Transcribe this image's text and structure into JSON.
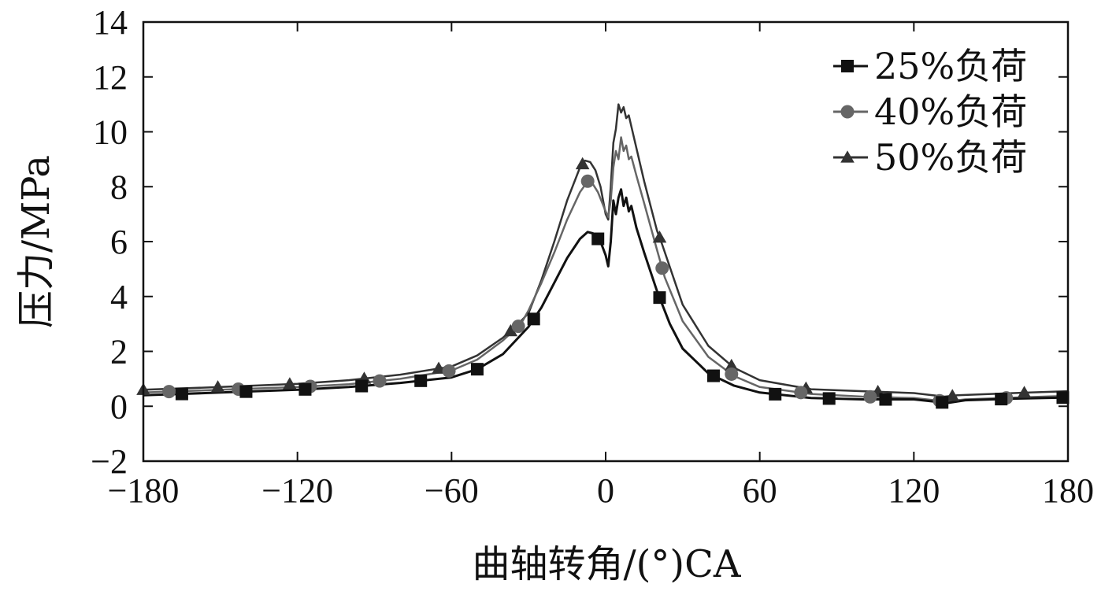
{
  "chart_data": {
    "type": "line",
    "title": "",
    "xlabel": "曲轴转角/(°)CA",
    "ylabel": "压力/MPa",
    "xlim": [
      -180,
      180
    ],
    "ylim": [
      -2,
      14
    ],
    "xticks": [
      -180,
      -120,
      -60,
      0,
      60,
      120,
      180
    ],
    "xtick_labels": [
      "−180",
      "−120",
      "−60",
      "0",
      "60",
      "120",
      "180"
    ],
    "yticks": [
      -2,
      0,
      2,
      4,
      6,
      8,
      10,
      12,
      14
    ],
    "ytick_labels": [
      "−2",
      "0",
      "2",
      "4",
      "6",
      "8",
      "10",
      "12",
      "14"
    ],
    "grid": false,
    "legend_position": "top-right",
    "series": [
      {
        "name": "25%负荷",
        "marker": "square",
        "color": "#111111",
        "x": [
          -180,
          -150,
          -120,
          -100,
          -80,
          -60,
          -50,
          -40,
          -30,
          -25,
          -20,
          -15,
          -10,
          -7,
          -5,
          -2,
          0,
          1,
          2,
          3,
          4,
          5,
          6,
          7,
          8,
          9,
          10,
          12,
          15,
          20,
          25,
          30,
          40,
          50,
          60,
          80,
          100,
          120,
          130,
          133,
          140,
          160,
          180
        ],
        "y": [
          0.4,
          0.5,
          0.6,
          0.7,
          0.85,
          1.05,
          1.35,
          1.9,
          2.9,
          3.6,
          4.5,
          5.4,
          6.1,
          6.35,
          6.3,
          6.0,
          5.5,
          5.1,
          6.0,
          7.5,
          7.0,
          7.6,
          7.9,
          7.3,
          7.6,
          7.1,
          7.3,
          6.5,
          5.6,
          4.2,
          3.0,
          2.1,
          1.2,
          0.75,
          0.5,
          0.3,
          0.25,
          0.25,
          0.15,
          0.12,
          0.22,
          0.28,
          0.32
        ]
      },
      {
        "name": "40%负荷",
        "marker": "circle",
        "color": "#666666",
        "x": [
          -180,
          -150,
          -120,
          -100,
          -80,
          -60,
          -50,
          -40,
          -33,
          -30,
          -25,
          -20,
          -15,
          -10,
          -7,
          -5,
          -3,
          0,
          1,
          2,
          3,
          4,
          5,
          6,
          7,
          8,
          9,
          10,
          12,
          15,
          20,
          23,
          30,
          40,
          50,
          60,
          80,
          100,
          120,
          130,
          133,
          140,
          160,
          180
        ],
        "y": [
          0.5,
          0.6,
          0.7,
          0.8,
          1.0,
          1.3,
          1.7,
          2.4,
          3.0,
          3.5,
          4.5,
          5.6,
          6.8,
          7.8,
          8.2,
          8.1,
          7.8,
          7.1,
          6.9,
          7.5,
          8.7,
          9.3,
          9.0,
          9.8,
          9.3,
          9.5,
          9.0,
          9.1,
          8.4,
          7.4,
          5.7,
          4.7,
          3.1,
          1.8,
          1.1,
          0.7,
          0.45,
          0.35,
          0.3,
          0.2,
          0.18,
          0.25,
          0.32,
          0.38
        ]
      },
      {
        "name": "50%负荷",
        "marker": "triangle",
        "color": "#333333",
        "x": [
          -180,
          -150,
          -120,
          -100,
          -80,
          -60,
          -50,
          -40,
          -35,
          -30,
          -25,
          -20,
          -15,
          -10,
          -8,
          -6,
          -4,
          -2,
          0,
          1,
          2,
          3,
          4,
          5,
          6,
          7,
          8,
          9,
          10,
          12,
          15,
          20,
          22,
          30,
          40,
          50,
          60,
          80,
          100,
          120,
          132,
          137,
          150,
          165,
          180
        ],
        "y": [
          0.6,
          0.7,
          0.82,
          0.95,
          1.15,
          1.45,
          1.85,
          2.5,
          2.9,
          3.4,
          4.6,
          6.0,
          7.5,
          8.7,
          8.95,
          8.9,
          8.6,
          8.0,
          7.0,
          6.8,
          8.0,
          9.6,
          10.1,
          11.0,
          10.7,
          10.9,
          10.5,
          10.6,
          10.2,
          9.4,
          8.2,
          6.4,
          5.9,
          3.7,
          2.2,
          1.4,
          0.95,
          0.62,
          0.55,
          0.48,
          0.35,
          0.4,
          0.45,
          0.5,
          0.55
        ]
      }
    ],
    "marker_x": [
      [
        -165,
        -140,
        -117,
        -95,
        -72,
        -50,
        -28,
        -3,
        21,
        42,
        66,
        87,
        109,
        131,
        154,
        178
      ],
      [
        -170,
        -143,
        -115,
        -88,
        -61,
        -34,
        -7,
        22,
        49,
        76,
        103,
        130,
        156
      ],
      [
        -180,
        -151,
        -123,
        -94,
        -65,
        -37,
        -9,
        21,
        49,
        78,
        106,
        135,
        163
      ]
    ]
  }
}
